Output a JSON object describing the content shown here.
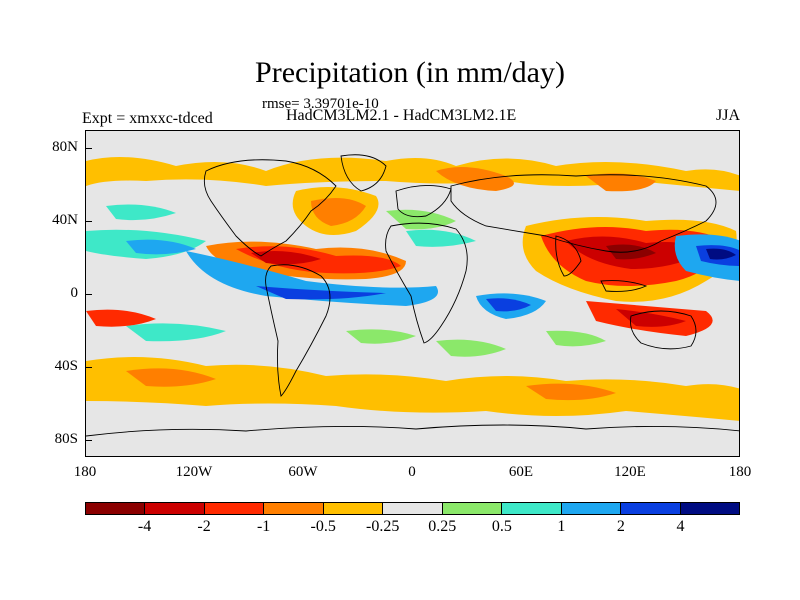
{
  "title": "Precipitation (in mm/day)",
  "rmse": "rmse= 3.39701e-10",
  "models": "HadCM3LM2.1 - HadCM3LM2.1E",
  "expt": "Expt = xmxxc-tdced",
  "season": "JJA",
  "lat_labels": [
    "80N",
    "40N",
    "0",
    "40S",
    "80S"
  ],
  "lon_labels": [
    "180",
    "120W",
    "60W",
    "0",
    "60E",
    "120E",
    "180"
  ],
  "colorbar": {
    "colors": [
      "#8b0000",
      "#cc0000",
      "#ff2a00",
      "#ff7f00",
      "#ffbf00",
      "#e6e6e6",
      "#8be86a",
      "#3ee8c8",
      "#1ea7f0",
      "#0a3fe0",
      "#000c82"
    ],
    "labels": [
      "-4",
      "-2",
      "-1",
      "-0.5",
      "-0.25",
      "0.25",
      "0.5",
      "1",
      "2",
      "4"
    ]
  },
  "chart_data": {
    "type": "heatmap",
    "title": "Precipitation (in mm/day)",
    "variable": "Precipitation difference",
    "units": "mm/day",
    "xlabel": "",
    "ylabel": "",
    "x_ticks": [
      "180",
      "120W",
      "60W",
      "0",
      "60E",
      "120E",
      "180"
    ],
    "y_ticks": [
      "80N",
      "40N",
      "0",
      "40S",
      "80S"
    ],
    "xlim": [
      -180,
      180
    ],
    "ylim": [
      -90,
      90
    ],
    "contour_levels": [
      -4,
      -2,
      -1,
      -0.5,
      -0.25,
      0.25,
      0.5,
      1,
      2,
      4
    ],
    "grid": false,
    "legend": "bottom colorbar"
  }
}
